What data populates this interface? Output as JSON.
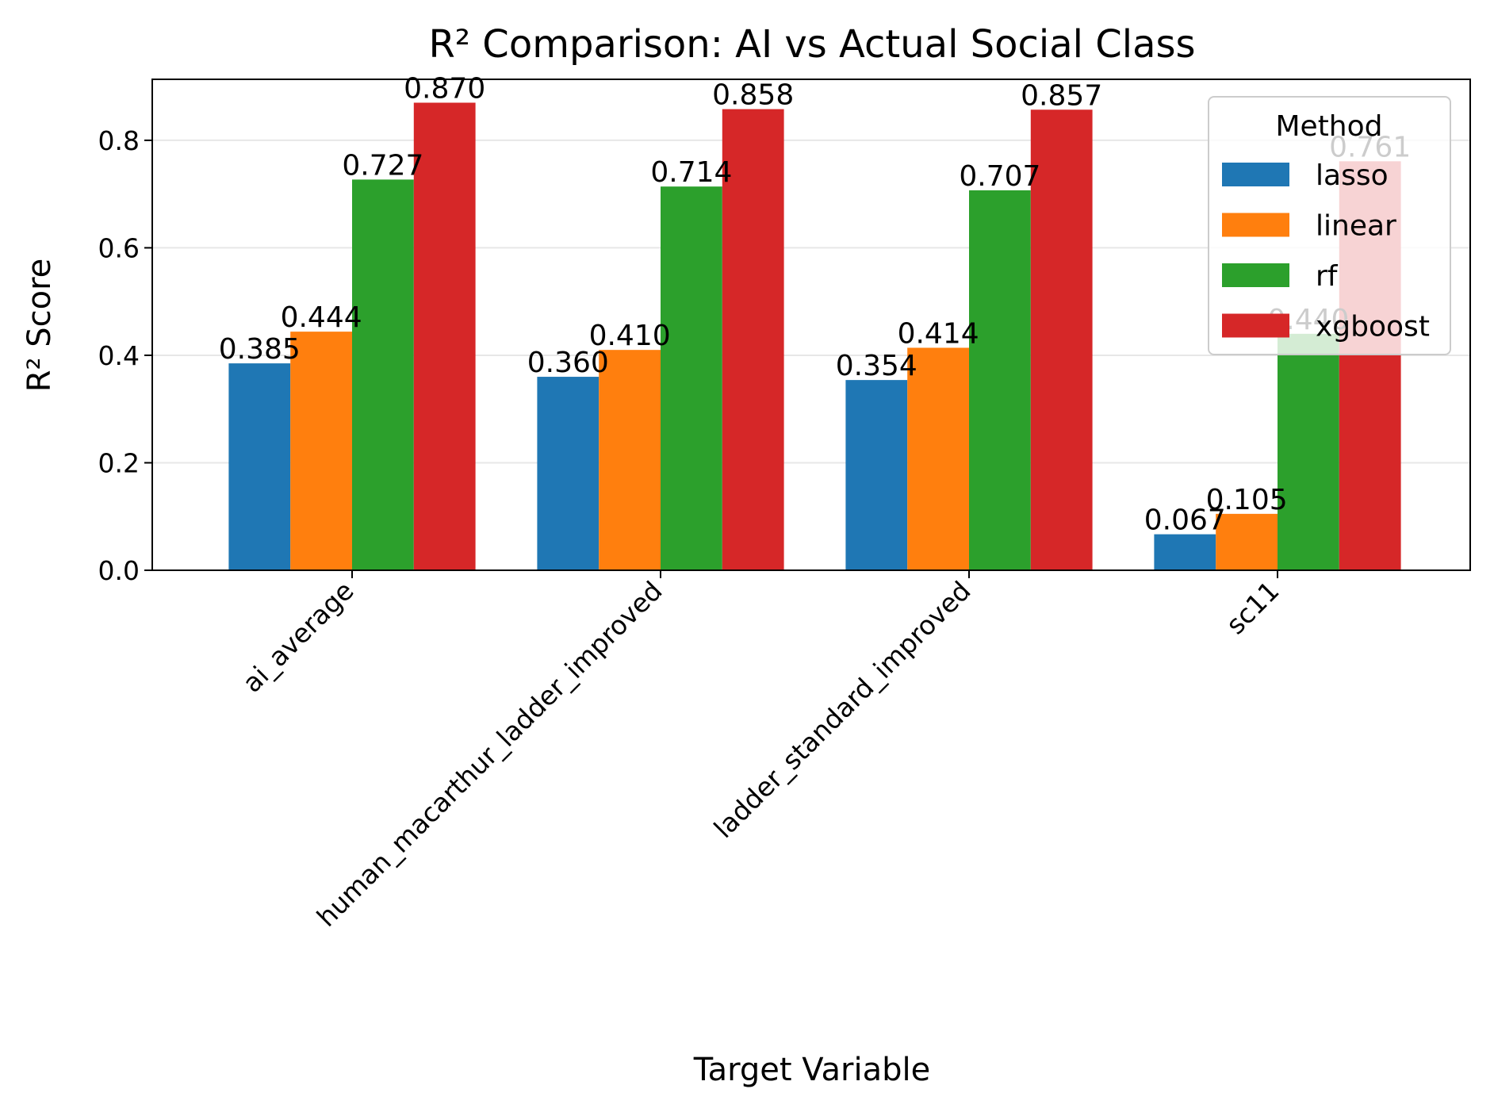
{
  "chart_data": {
    "type": "bar",
    "title": "R² Comparison: AI vs Actual Social Class",
    "xlabel": "Target Variable",
    "ylabel": "R² Score",
    "categories": [
      "ai_average",
      "human_macarthur_ladder_improved",
      "ladder_standard_improved",
      "sc11"
    ],
    "series": [
      {
        "name": "lasso",
        "color": "#1f77b4",
        "values": [
          0.385,
          0.36,
          0.354,
          0.067
        ],
        "labels": [
          "0.385",
          "0.360",
          "0.354",
          "0.067"
        ]
      },
      {
        "name": "linear",
        "color": "#ff7f0e",
        "values": [
          0.444,
          0.41,
          0.414,
          0.105
        ],
        "labels": [
          "0.444",
          "0.410",
          "0.414",
          "0.105"
        ]
      },
      {
        "name": "rf",
        "color": "#2ca02c",
        "values": [
          0.727,
          0.714,
          0.707,
          0.44
        ],
        "labels": [
          "0.727",
          "0.714",
          "0.707",
          "0.440"
        ]
      },
      {
        "name": "xgboost",
        "color": "#d62728",
        "values": [
          0.87,
          0.858,
          0.857,
          0.761
        ],
        "labels": [
          "0.870",
          "0.858",
          "0.857",
          "0.761"
        ]
      }
    ],
    "yticks": [
      "0.0",
      "0.2",
      "0.4",
      "0.6",
      "0.8"
    ],
    "ylim": [
      0,
      0.9135
    ],
    "grid": "horizontal",
    "legend": {
      "title": "Method",
      "position": "upper-right"
    }
  }
}
